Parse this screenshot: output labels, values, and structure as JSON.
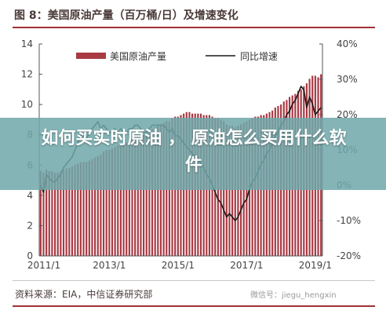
{
  "figure": {
    "title": "图 8：美国原油产量（百万桶/日）及增速变化",
    "source": "资料来源：EIA，中信证券研究部",
    "watermark": "微信号：jiegu_hengxin"
  },
  "overlay": {
    "headline": "如何买实时原油 ， 原油怎么买用什么软件"
  },
  "chart_data": {
    "type": "bar",
    "title": "",
    "xlabel": "",
    "ylabel": "",
    "x_ticks": [
      "2011/1",
      "2013/1",
      "2015/1",
      "2017/1",
      "2019/1"
    ],
    "ylim": [
      0,
      14
    ],
    "y_ticks": [
      "0",
      "2",
      "4",
      "6",
      "8",
      "10",
      "12",
      "14"
    ],
    "y2lim": [
      -20,
      40
    ],
    "y2_ticks": [
      "-20%",
      "-10%",
      "0%",
      "10%",
      "20%",
      "30%",
      "40%"
    ],
    "grid": false,
    "legend_position": "top",
    "colors": {
      "bar": "#a93a44",
      "line": "#1a1a1a"
    },
    "series": [
      {
        "name": "美国原油产量",
        "type": "bar",
        "axis": "left",
        "start": "2011/1",
        "values": [
          5.6,
          5.5,
          5.7,
          5.6,
          5.6,
          5.5,
          5.5,
          5.6,
          5.7,
          5.8,
          5.8,
          5.9,
          6.0,
          6.1,
          6.2,
          6.2,
          6.2,
          6.3,
          6.4,
          6.5,
          6.6,
          6.7,
          6.9,
          7.0,
          7.0,
          7.1,
          7.2,
          7.3,
          7.3,
          7.5,
          7.5,
          7.6,
          7.7,
          7.8,
          7.9,
          8.0,
          8.0,
          8.1,
          8.2,
          8.4,
          8.5,
          8.6,
          8.7,
          8.8,
          8.9,
          8.9,
          9.1,
          9.2,
          9.2,
          9.3,
          9.4,
          9.5,
          9.5,
          9.4,
          9.4,
          9.4,
          9.4,
          9.3,
          9.3,
          9.3,
          9.2,
          9.1,
          9.1,
          9.0,
          8.9,
          8.7,
          8.6,
          8.6,
          8.5,
          8.6,
          8.7,
          8.8,
          8.9,
          9.0,
          9.1,
          9.2,
          9.2,
          9.3,
          9.3,
          9.4,
          9.5,
          9.6,
          9.8,
          9.9,
          10.0,
          10.2,
          10.3,
          10.5,
          10.6,
          10.7,
          10.9,
          11.0,
          11.2,
          11.4,
          11.7,
          11.9,
          11.9,
          11.8,
          12.0
        ]
      },
      {
        "name": "同比增速",
        "type": "line",
        "axis": "right",
        "start": "2011/1",
        "values": [
          0,
          -2,
          3,
          2,
          1,
          1,
          2,
          3,
          5,
          6,
          7,
          8,
          10,
          12,
          14,
          14,
          13,
          15,
          16,
          17,
          18,
          16,
          17,
          16,
          15,
          15,
          16,
          15,
          16,
          15,
          15,
          16,
          16,
          17,
          17,
          16,
          15,
          15,
          16,
          17,
          17,
          17,
          17,
          17,
          16,
          15,
          16,
          14,
          14,
          13,
          12,
          11,
          10,
          9,
          8,
          8,
          6,
          5,
          3,
          2,
          0,
          -2,
          -4,
          -5,
          -7,
          -9,
          -8,
          -9,
          -10,
          -9,
          -7,
          -5,
          -4,
          -1,
          1,
          2,
          4,
          6,
          7,
          9,
          10,
          12,
          14,
          15,
          17,
          18,
          20,
          21,
          23,
          24,
          26,
          28,
          27,
          22,
          25,
          23,
          20,
          21,
          22
        ]
      }
    ]
  }
}
